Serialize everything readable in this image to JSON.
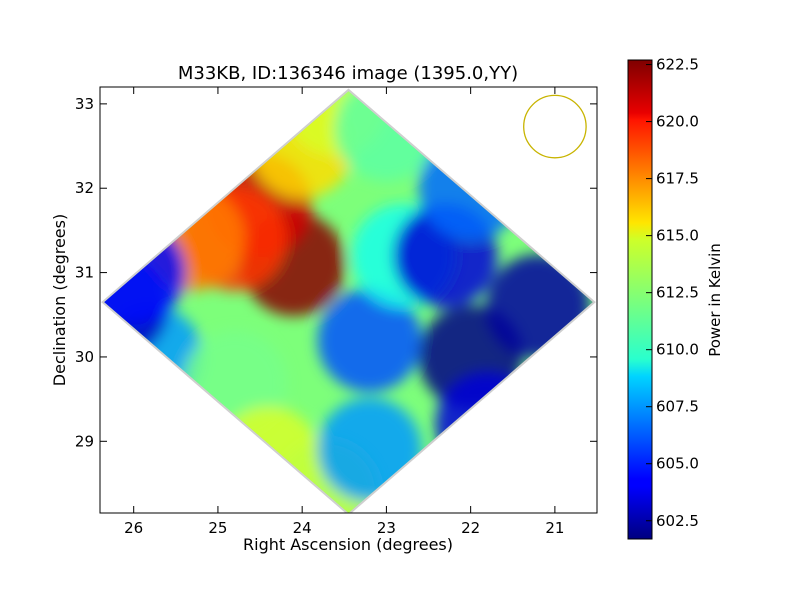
{
  "chart_data": {
    "type": "heatmap",
    "title": "M33KB, ID:136346 image (1395.0,YY)",
    "xlabel": "Right Ascension (degrees)",
    "ylabel": "Declination (degrees)",
    "xlim": [
      26.4,
      20.5
    ],
    "ylim": [
      28.15,
      33.2
    ],
    "xticks": [
      26,
      25,
      24,
      23,
      22,
      21
    ],
    "yticks": [
      29,
      30,
      31,
      32,
      33
    ],
    "colorbar": {
      "label": "Power in Kelvin",
      "range": [
        601.7,
        622.7
      ],
      "ticks": [
        "602.5",
        "605.0",
        "607.5",
        "610.0",
        "612.5",
        "615.0",
        "617.5",
        "620.0",
        "622.5"
      ],
      "colormap": "jet"
    },
    "footprint_vertices_deg": [
      [
        23.45,
        33.15
      ],
      [
        20.55,
        30.65
      ],
      [
        23.45,
        28.15
      ],
      [
        26.35,
        30.65
      ]
    ],
    "intensity_features": [
      {
        "ra": 24.1,
        "dec": 31.1,
        "value": 622.5
      },
      {
        "ra": 24.5,
        "dec": 31.8,
        "value": 621.0
      },
      {
        "ra": 24.8,
        "dec": 31.4,
        "value": 619.0
      },
      {
        "ra": 25.3,
        "dec": 31.4,
        "value": 617.5
      },
      {
        "ra": 24.0,
        "dec": 32.5,
        "value": 615.5
      },
      {
        "ra": 23.6,
        "dec": 33.0,
        "value": 614.0
      },
      {
        "ra": 23.0,
        "dec": 32.7,
        "value": 611.5
      },
      {
        "ra": 25.8,
        "dec": 30.0,
        "value": 607.5
      },
      {
        "ra": 26.2,
        "dec": 30.6,
        "value": 603.0
      },
      {
        "ra": 26.0,
        "dec": 31.0,
        "value": 604.5
      },
      {
        "ra": 24.8,
        "dec": 29.7,
        "value": 612.0
      },
      {
        "ra": 24.4,
        "dec": 28.8,
        "value": 614.0
      },
      {
        "ra": 23.7,
        "dec": 28.4,
        "value": 613.5
      },
      {
        "ra": 23.2,
        "dec": 28.9,
        "value": 607.5
      },
      {
        "ra": 23.2,
        "dec": 30.2,
        "value": 606.0
      },
      {
        "ra": 22.8,
        "dec": 31.2,
        "value": 610.0
      },
      {
        "ra": 22.3,
        "dec": 31.2,
        "value": 603.5
      },
      {
        "ra": 22.0,
        "dec": 30.0,
        "value": 601.8
      },
      {
        "ra": 21.2,
        "dec": 30.6,
        "value": 602.3
      },
      {
        "ra": 22.0,
        "dec": 32.0,
        "value": 606.5
      },
      {
        "ra": 21.8,
        "dec": 29.2,
        "value": 603.5
      }
    ],
    "beam_marker": {
      "shape": "circle",
      "ra": 21.0,
      "dec": 32.73,
      "diameter_deg": 0.74,
      "color": "#c8b400"
    }
  }
}
